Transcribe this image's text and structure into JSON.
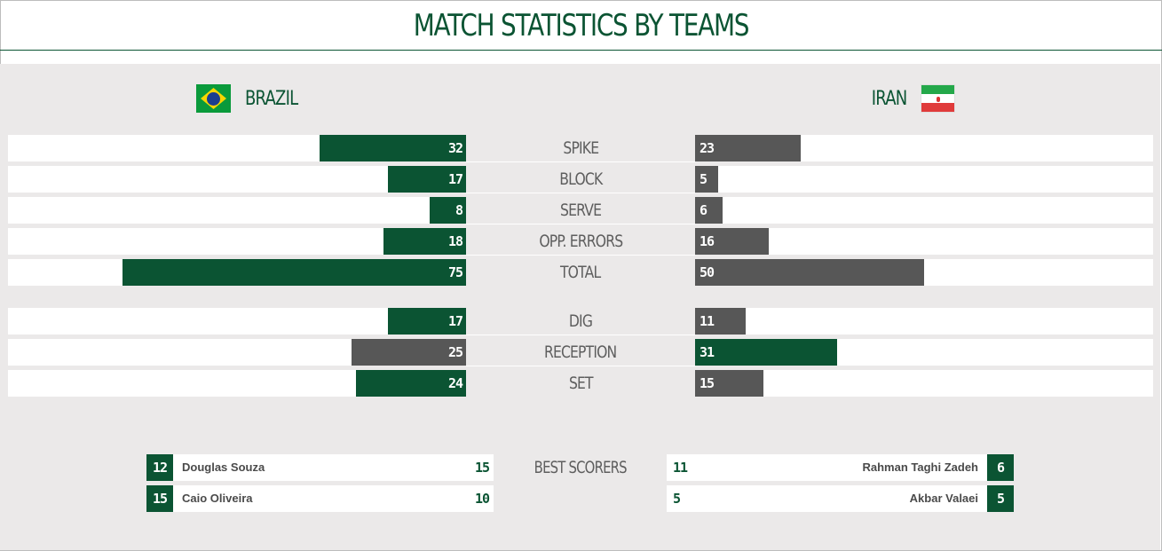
{
  "page": {
    "title": "MATCH STATISTICS BY TEAMS"
  },
  "teams": {
    "left": {
      "name": "BRAZIL",
      "flag_icon": "brazil-flag-icon"
    },
    "right": {
      "name": "IRAN",
      "flag_icon": "iran-flag-icon"
    }
  },
  "colors": {
    "accent": "#0b5433",
    "lower": "#575757",
    "panel": "#ebe9e9"
  },
  "stats": [
    {
      "label": "SPIKE",
      "left": 32,
      "right": 23
    },
    {
      "label": "BLOCK",
      "left": 17,
      "right": 5
    },
    {
      "label": "SERVE",
      "left": 8,
      "right": 6
    },
    {
      "label": "OPP. ERRORS",
      "left": 18,
      "right": 16
    },
    {
      "label": "TOTAL",
      "left": 75,
      "right": 50
    },
    {
      "label": "DIG",
      "left": 17,
      "right": 11
    },
    {
      "label": "RECEPTION",
      "left": 25,
      "right": 31
    },
    {
      "label": "SET",
      "left": 24,
      "right": 15
    }
  ],
  "best_scorers": {
    "label": "BEST SCORERS",
    "left": [
      {
        "number": "12",
        "name": "Douglas Souza",
        "points": "15"
      },
      {
        "number": "15",
        "name": "Caio Oliveira",
        "points": "10"
      }
    ],
    "right": [
      {
        "number": "6",
        "name": "Rahman Taghi Zadeh",
        "points": "11"
      },
      {
        "number": "5",
        "name": "Akbar Valaei",
        "points": "5"
      }
    ]
  }
}
